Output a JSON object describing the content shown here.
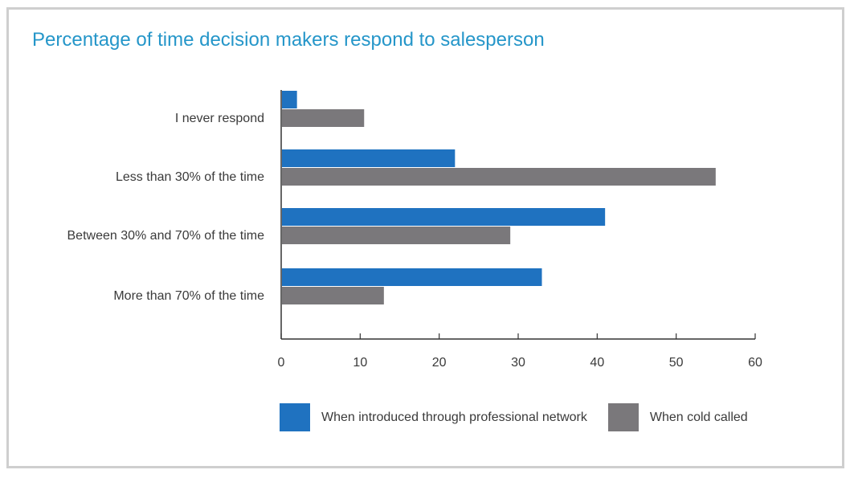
{
  "chart_data": {
    "type": "bar",
    "orientation": "horizontal",
    "title": "Percentage of time decision makers respond to salesperson",
    "categories": [
      "I never respond",
      "Less than 30% of the time",
      "Between 30% and 70% of the time",
      "More than 70% of the time"
    ],
    "series": [
      {
        "name": "When introduced through professional network",
        "color": "#1f72c0",
        "values": [
          2,
          22,
          41,
          33
        ]
      },
      {
        "name": "When cold called",
        "color": "#7a787b",
        "values": [
          10.5,
          55,
          29,
          13
        ]
      }
    ],
    "xlim": [
      0,
      60
    ],
    "xticks": [
      0,
      10,
      20,
      30,
      40,
      50,
      60
    ],
    "grid": false,
    "legend_position": "bottom"
  }
}
